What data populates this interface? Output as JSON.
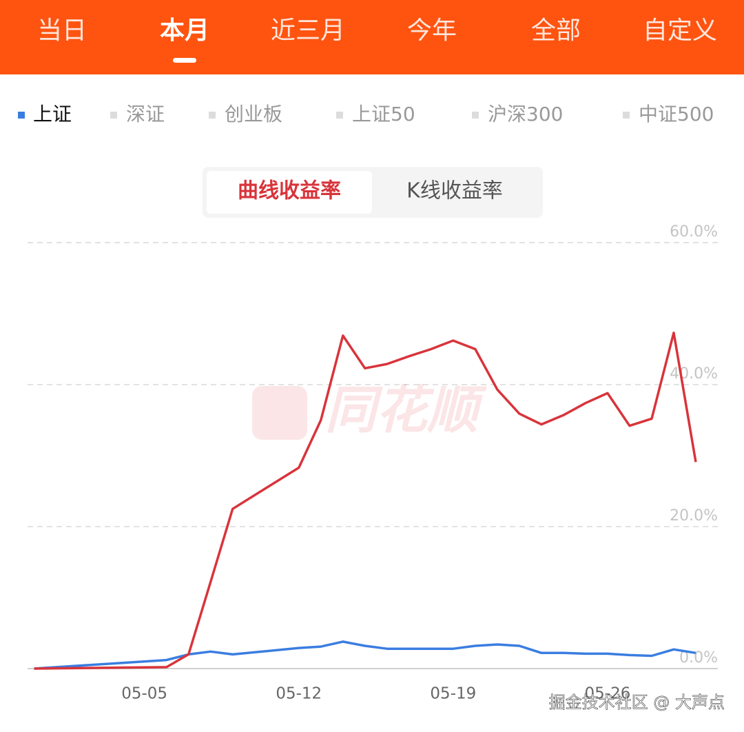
{
  "tabs": [
    "当日",
    "本月",
    "近三月",
    "今年",
    "全部",
    "自定义"
  ],
  "active_tab": 1,
  "other_indices": [
    "深证",
    "创业板",
    "上证50",
    "沪深300",
    "中证500"
  ],
  "toggle": [
    "曲线收益率",
    "K线收益率"
  ],
  "active_toggle": 0,
  "watermark": "同花顺",
  "credit": "掘金技术社区 @ 大声点",
  "chart_data": {
    "type": "line",
    "x": [
      0,
      6,
      7,
      8,
      9,
      12,
      13,
      14,
      15,
      16,
      17,
      18,
      19,
      20,
      21,
      22,
      23,
      24,
      25,
      26,
      27,
      28,
      29,
      30
    ],
    "xlim": [
      -0.3,
      31
    ],
    "xticks": [
      {
        "value": 5,
        "label": "05-05"
      },
      {
        "value": 12,
        "label": "05-12"
      },
      {
        "value": 19,
        "label": "05-19"
      },
      {
        "value": 26,
        "label": "05-26"
      }
    ],
    "ylim": [
      0,
      60
    ],
    "yticks": [
      {
        "value": 0,
        "label": "0.0%"
      },
      {
        "value": 20,
        "label": "20.0%"
      },
      {
        "value": 40,
        "label": "40.0%"
      },
      {
        "value": 60,
        "label": "60.0%"
      }
    ],
    "grid": true,
    "series": [
      {
        "color": "#d8343b",
        "values": [
          0,
          0.2,
          2,
          12.2,
          22.5,
          28.3,
          35,
          46.9,
          42.3,
          42.9,
          44,
          45,
          46.2,
          45,
          39.3,
          35.9,
          34.4,
          35.7,
          37.4,
          38.8,
          34.2,
          35.2,
          47.3,
          29.1
        ]
      },
      {
        "name": "上证",
        "color": "#3a7de0",
        "values": [
          0,
          1.2,
          2.0,
          2.4,
          2.0,
          2.9,
          3.1,
          3.8,
          3.2,
          2.8,
          2.8,
          2.8,
          2.8,
          3.2,
          3.4,
          3.2,
          2.2,
          2.2,
          2.1,
          2.1,
          1.9,
          1.8,
          2.7,
          2.2
        ]
      }
    ]
  }
}
